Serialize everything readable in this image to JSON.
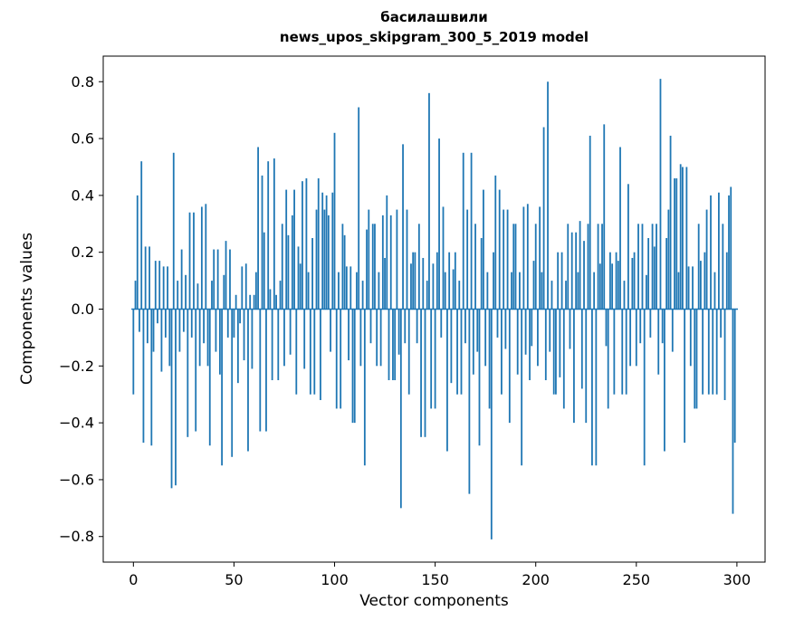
{
  "chart_data": {
    "type": "bar",
    "title_line1": "басилашвили",
    "title_line2": "news_upos_skipgram_300_5_2019 model",
    "xlabel": "Vector components",
    "ylabel": "Components values",
    "bar_color": "#1f77b4",
    "frame_color": "#000000",
    "x_ticks": [
      0,
      50,
      100,
      150,
      200,
      250,
      300
    ],
    "y_ticks": [
      -0.8,
      -0.6,
      -0.4,
      -0.2,
      0.0,
      0.2,
      0.4,
      0.6,
      0.8
    ],
    "xlim": [
      -15,
      314
    ],
    "ylim": [
      -0.89,
      0.89
    ],
    "values": [
      -0.3,
      0.1,
      0.4,
      -0.08,
      0.52,
      -0.47,
      0.22,
      -0.12,
      0.22,
      -0.48,
      -0.15,
      0.17,
      -0.05,
      0.17,
      -0.22,
      0.15,
      -0.1,
      0.15,
      -0.2,
      -0.63,
      0.55,
      -0.62,
      0.1,
      -0.15,
      0.21,
      -0.08,
      0.12,
      -0.45,
      0.34,
      -0.1,
      0.34,
      -0.43,
      0.09,
      -0.2,
      0.36,
      -0.12,
      0.37,
      -0.2,
      -0.48,
      0.1,
      0.21,
      -0.15,
      0.21,
      -0.23,
      -0.55,
      0.12,
      0.24,
      -0.1,
      0.21,
      -0.52,
      -0.1,
      0.05,
      -0.26,
      -0.05,
      0.15,
      -0.18,
      0.16,
      -0.5,
      0.05,
      -0.21,
      0.05,
      0.13,
      0.57,
      -0.43,
      0.47,
      0.27,
      -0.43,
      0.52,
      0.07,
      -0.25,
      0.53,
      0.05,
      -0.25,
      0.1,
      0.3,
      -0.2,
      0.42,
      0.26,
      -0.16,
      0.33,
      0.42,
      -0.3,
      0.22,
      0.16,
      0.45,
      -0.21,
      0.46,
      0.13,
      -0.3,
      0.25,
      -0.3,
      0.35,
      0.46,
      -0.32,
      0.41,
      0.35,
      0.4,
      0.33,
      -0.15,
      0.41,
      0.62,
      -0.35,
      0.13,
      -0.35,
      0.3,
      0.26,
      0.15,
      -0.18,
      0.15,
      -0.4,
      -0.4,
      0.13,
      0.71,
      -0.2,
      0.1,
      -0.55,
      0.28,
      0.35,
      -0.12,
      0.3,
      0.3,
      -0.2,
      0.13,
      -0.2,
      0.33,
      0.18,
      0.4,
      -0.25,
      0.33,
      -0.25,
      -0.25,
      0.35,
      -0.16,
      -0.7,
      0.58,
      -0.12,
      0.35,
      -0.3,
      0.16,
      0.2,
      0.2,
      -0.12,
      0.3,
      -0.45,
      0.18,
      -0.45,
      0.1,
      0.76,
      -0.35,
      0.16,
      -0.35,
      0.2,
      0.6,
      -0.1,
      0.36,
      0.13,
      -0.5,
      0.2,
      -0.26,
      0.14,
      0.2,
      -0.3,
      0.1,
      -0.3,
      0.55,
      -0.12,
      0.35,
      -0.65,
      0.55,
      -0.23,
      0.3,
      -0.15,
      -0.48,
      0.25,
      0.42,
      -0.2,
      0.13,
      -0.35,
      -0.81,
      0.2,
      0.47,
      -0.1,
      0.42,
      -0.3,
      0.35,
      -0.14,
      0.35,
      -0.4,
      0.13,
      0.3,
      0.3,
      -0.23,
      0.13,
      -0.55,
      0.36,
      -0.16,
      0.37,
      -0.25,
      -0.13,
      0.17,
      0.3,
      -0.2,
      0.36,
      0.13,
      0.64,
      -0.25,
      0.8,
      -0.15,
      0.1,
      -0.3,
      -0.3,
      0.2,
      -0.24,
      0.2,
      -0.35,
      0.1,
      0.3,
      -0.14,
      0.27,
      -0.4,
      0.27,
      0.13,
      0.31,
      -0.28,
      0.24,
      -0.4,
      0.3,
      0.61,
      -0.55,
      0.13,
      -0.55,
      0.3,
      0.16,
      0.3,
      0.65,
      -0.13,
      -0.35,
      0.2,
      0.16,
      -0.3,
      0.2,
      0.17,
      0.57,
      -0.3,
      0.1,
      -0.3,
      0.44,
      -0.2,
      0.18,
      0.2,
      -0.2,
      0.3,
      -0.12,
      0.3,
      -0.55,
      0.12,
      0.25,
      -0.1,
      0.3,
      0.22,
      0.3,
      -0.23,
      0.81,
      -0.12,
      -0.5,
      0.25,
      0.35,
      0.61,
      -0.15,
      0.46,
      0.46,
      0.13,
      0.51,
      0.5,
      -0.47,
      0.5,
      0.15,
      -0.2,
      0.15,
      -0.35,
      -0.35,
      0.3,
      0.17,
      -0.3,
      0.2,
      0.35,
      -0.3,
      0.4,
      -0.3,
      0.13,
      -0.3,
      0.41,
      -0.1,
      0.3,
      -0.32,
      0.2,
      0.4,
      0.43,
      -0.72,
      -0.47
    ]
  }
}
